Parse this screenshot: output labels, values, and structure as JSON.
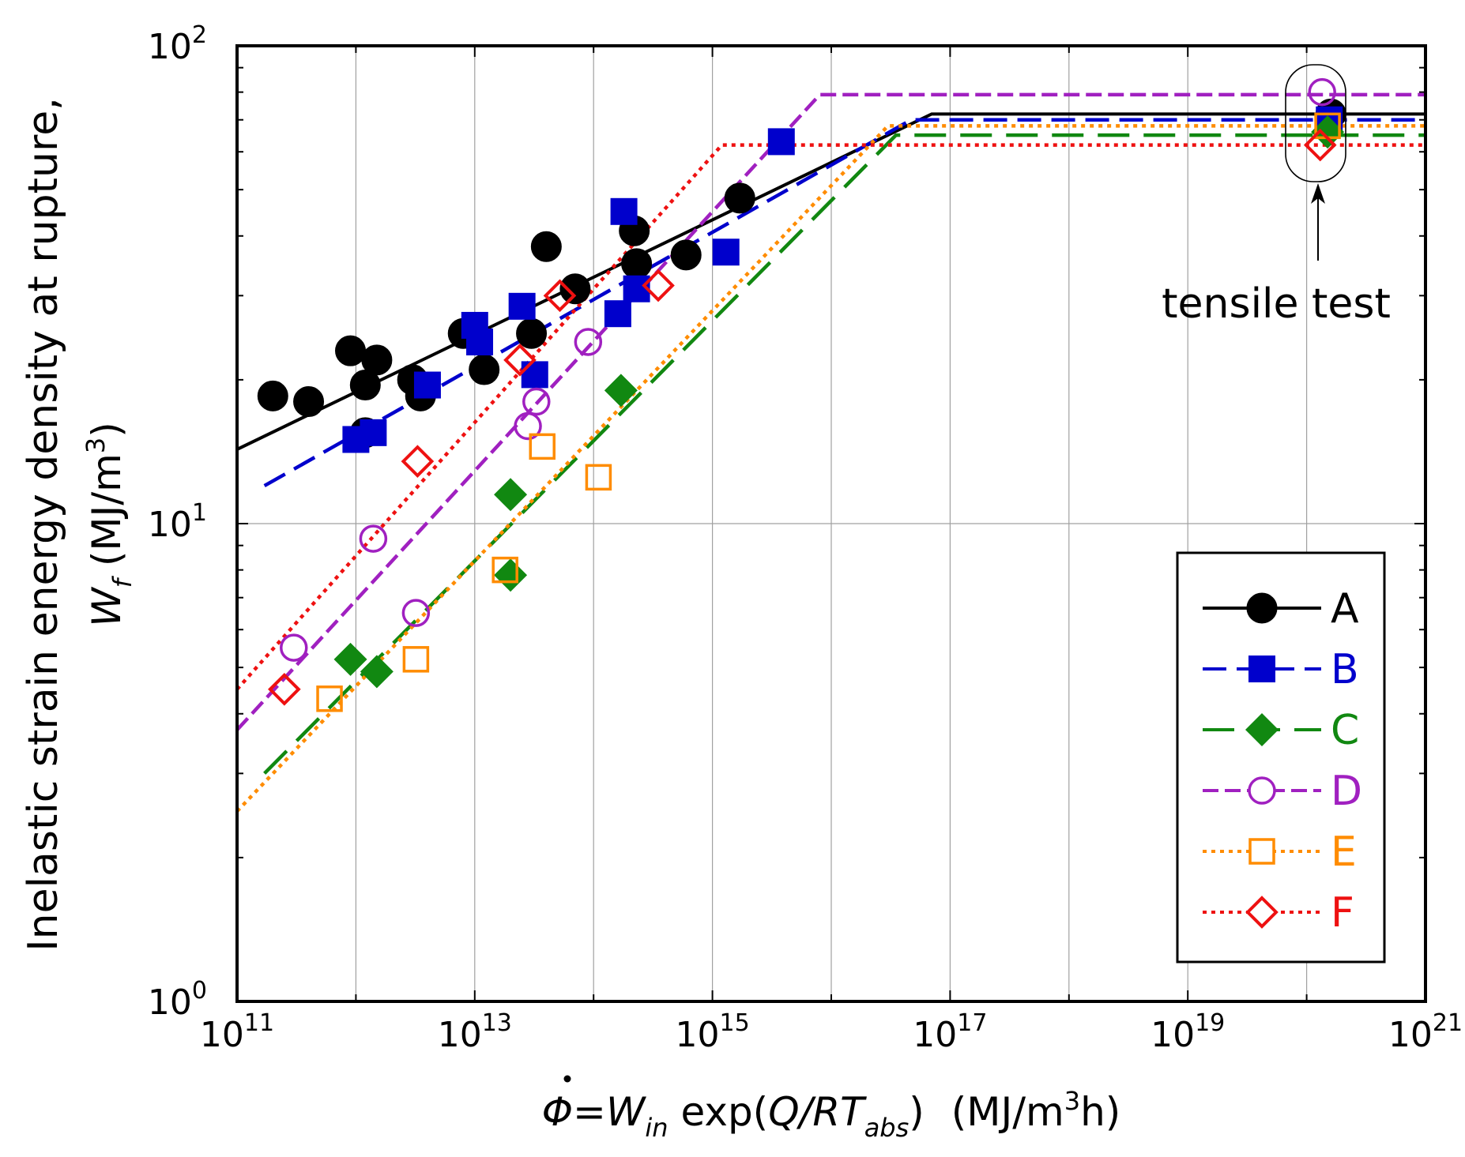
{
  "chart_data": {
    "type": "scatter",
    "scale": "log-log",
    "title": "",
    "xlabel": "Φ=Ẇin exp(Q/RTabs)  (MJ/m3h)",
    "ylabel": "Inelastic strain energy density at rupture, Wf (MJ/m3)",
    "xlabel_parts": {
      "phi": "Φ",
      "eq": "=",
      "w": "W",
      "w_sub": "in",
      "exp": " exp(",
      "q": "Q/RT",
      "q_sub": "abs",
      "close": ")",
      "units_pre": "(MJ/m",
      "units_sup": "3",
      "units_post": "h)"
    },
    "ylabel_parts": {
      "line1": "Inelastic strain energy density at rupture,",
      "w": "W",
      "w_sub": "f",
      "units_pre": " (MJ/m",
      "units_sup": "3",
      "units_post": ")"
    },
    "xlim_exp": [
      11,
      21
    ],
    "ylim_exp": [
      0,
      2
    ],
    "x_ticks": [
      {
        "base": "10",
        "exp": "11"
      },
      {
        "base": "10",
        "exp": "13"
      },
      {
        "base": "10",
        "exp": "15"
      },
      {
        "base": "10",
        "exp": "17"
      },
      {
        "base": "10",
        "exp": "19"
      },
      {
        "base": "10",
        "exp": "21"
      }
    ],
    "y_ticks": [
      {
        "base": "10",
        "exp": "0"
      },
      {
        "base": "10",
        "exp": "1"
      },
      {
        "base": "10",
        "exp": "2"
      }
    ],
    "grid": true,
    "legend_position": "lower-right",
    "annotation": {
      "text": "tensile test",
      "target_x": 1.3e+20,
      "target_y": 66
    },
    "series": [
      {
        "name": "A",
        "color": "#000000",
        "marker": "circle-filled",
        "dash": "solid",
        "fit_line": [
          [
            100000000000.0,
            14.3
          ],
          [
            7e+16,
            72
          ],
          [
            1e+21,
            72
          ]
        ],
        "points": [
          [
            200000000000.0,
            18.5
          ],
          [
            400000000000.0,
            18
          ],
          [
            900000000000.0,
            23
          ],
          [
            1200000000000.0,
            19.5
          ],
          [
            1500000000000.0,
            22
          ],
          [
            1200000000000.0,
            15.5
          ],
          [
            3000000000000.0,
            20
          ],
          [
            3500000000000.0,
            18.5
          ],
          [
            8000000000000.0,
            25
          ],
          [
            12000000000000.0,
            21
          ],
          [
            30000000000000.0,
            25
          ],
          [
            40000000000000.0,
            38
          ],
          [
            70000000000000.0,
            31
          ],
          [
            220000000000000.0,
            41
          ],
          [
            230000000000000.0,
            35
          ],
          [
            600000000000000.0,
            36.5
          ],
          [
            1700000000000000.0,
            48
          ],
          [
            1.6e+20,
            72
          ]
        ]
      },
      {
        "name": "B",
        "color": "#0000cc",
        "marker": "square-filled",
        "dash": "long-dash",
        "fit_line": [
          [
            170000000000.0,
            12
          ],
          [
            4.7e+16,
            70
          ],
          [
            1e+21,
            70
          ]
        ],
        "points": [
          [
            1000000000000.0,
            15
          ],
          [
            1400000000000.0,
            15.5
          ],
          [
            4000000000000.0,
            19.5
          ],
          [
            10000000000000.0,
            26
          ],
          [
            11000000000000.0,
            24
          ],
          [
            25000000000000.0,
            28.5
          ],
          [
            32000000000000.0,
            20.5
          ],
          [
            160000000000000.0,
            27.5
          ],
          [
            180000000000000.0,
            45
          ],
          [
            230000000000000.0,
            31
          ],
          [
            1300000000000000.0,
            37
          ],
          [
            3800000000000000.0,
            63
          ],
          [
            1.55e+20,
            70
          ]
        ]
      },
      {
        "name": "C",
        "color": "#118811",
        "marker": "diamond-filled",
        "dash": "dash",
        "fit_line": [
          [
            170000000000.0,
            3
          ],
          [
            3.5e+16,
            65
          ],
          [
            1e+21,
            65
          ]
        ],
        "points": [
          [
            900000000000.0,
            5.2
          ],
          [
            1500000000000.0,
            4.9
          ],
          [
            20000000000000.0,
            7.8
          ],
          [
            20000000000000.0,
            11.5
          ],
          [
            170000000000000.0,
            19
          ],
          [
            1.5e+20,
            66
          ]
        ]
      },
      {
        "name": "D",
        "color": "#a020c0",
        "marker": "circle-open",
        "dash": "dense-dash",
        "fit_line": [
          [
            100000000000.0,
            3.7
          ],
          [
            8000000000000000.0,
            79
          ],
          [
            1e+21,
            79
          ]
        ],
        "points": [
          [
            300000000000.0,
            5.5
          ],
          [
            1400000000000.0,
            9.3
          ],
          [
            3200000000000.0,
            6.5
          ],
          [
            28000000000000.0,
            16
          ],
          [
            33000000000000.0,
            18
          ],
          [
            90000000000000.0,
            24
          ],
          [
            1.35e+20,
            80
          ]
        ]
      },
      {
        "name": "E",
        "color": "#ff8c00",
        "marker": "square-open",
        "dash": "dot",
        "fit_line": [
          [
            100000000000.0,
            2.5
          ],
          [
            3e+16,
            68
          ],
          [
            1e+21,
            68
          ]
        ],
        "points": [
          [
            600000000000.0,
            4.3
          ],
          [
            3200000000000.0,
            5.2
          ],
          [
            18000000000000.0,
            8
          ],
          [
            37000000000000.0,
            14.5
          ],
          [
            110000000000000.0,
            12.5
          ],
          [
            1.5e+20,
            68
          ]
        ]
      },
      {
        "name": "F",
        "color": "#ee1111",
        "marker": "diamond-open",
        "dash": "dot",
        "fit_line": [
          [
            100000000000.0,
            4.5
          ],
          [
            1200000000000000.0,
            62
          ],
          [
            1e+21,
            62
          ]
        ],
        "points": [
          [
            250000000000.0,
            4.5
          ],
          [
            3300000000000.0,
            13.5
          ],
          [
            24000000000000.0,
            22
          ],
          [
            52000000000000.0,
            30
          ],
          [
            350000000000000.0,
            31.5
          ],
          [
            1.3e+20,
            62
          ]
        ]
      }
    ]
  }
}
